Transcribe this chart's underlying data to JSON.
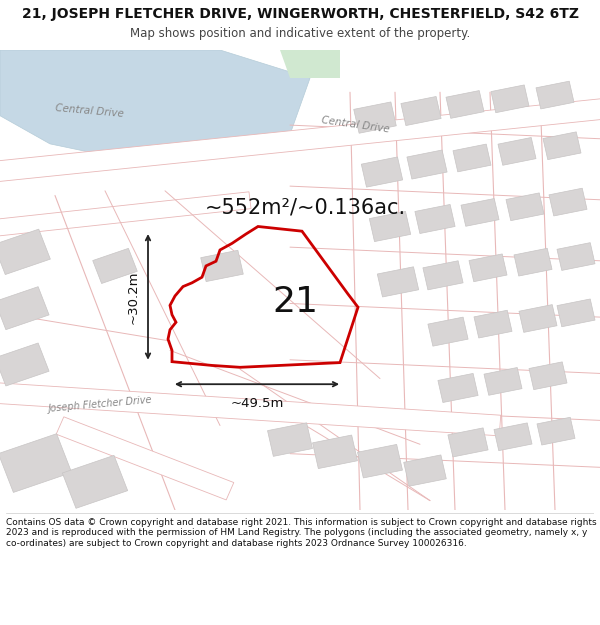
{
  "title_line1": "21, JOSEPH FLETCHER DRIVE, WINGERWORTH, CHESTERFIELD, S42 6TZ",
  "title_line2": "Map shows position and indicative extent of the property.",
  "area_text": "~552m²/~0.136ac.",
  "number_label": "21",
  "dim_width": "~49.5m",
  "dim_height": "~30.2m",
  "footer": "Contains OS data © Crown copyright and database right 2021. This information is subject to Crown copyright and database rights 2023 and is reproduced with the permission of HM Land Registry. The polygons (including the associated geometry, namely x, y co-ordinates) are subject to Crown copyright and database rights 2023 Ordnance Survey 100026316.",
  "map_bg": "#eeebeb",
  "water_color": "#c5d8e5",
  "water_edge": "#b5ccd8",
  "road_line_color": "#e8b8b8",
  "road_line_lw": 0.7,
  "building_color": "#d8d5d5",
  "building_edge": "#c8c5c5",
  "building_lw": 0.5,
  "property_stroke": "#cc0000",
  "property_lw": 2.0,
  "arrow_color": "#222222",
  "text_color": "#111111",
  "road_label_color": "#888888",
  "footer_fontsize": 6.5,
  "title1_fontsize": 10.0,
  "title2_fontsize": 8.5,
  "area_fontsize": 15,
  "number_fontsize": 26,
  "dim_fontsize": 9.5
}
